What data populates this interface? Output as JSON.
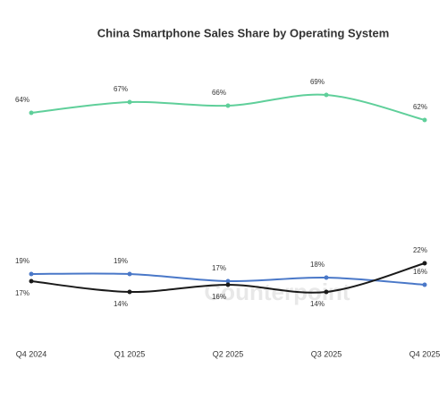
{
  "chart_data": {
    "type": "line",
    "title": "China Smartphone Sales Share by Operating System",
    "watermark": "Counterpoint",
    "categories": [
      "Q4 2024",
      "Q1 2025",
      "Q2 2025",
      "Q3 2025",
      "Q4 2025"
    ],
    "ylim": [
      0,
      75
    ],
    "series": [
      {
        "color": "#5fcf9a",
        "values": [
          64,
          67,
          66,
          69,
          62
        ],
        "value_labels": [
          "64%",
          "67%",
          "66%",
          "69%",
          "62%"
        ]
      },
      {
        "color": "#4a78c8",
        "values": [
          19,
          19,
          17,
          18,
          16
        ],
        "value_labels": [
          "19%",
          "19%",
          "17%",
          "18%",
          "16%"
        ]
      },
      {
        "color": "#1a1a1a",
        "values": [
          17,
          14,
          16,
          14,
          22
        ],
        "value_labels": [
          "17%",
          "14%",
          "16%",
          "14%",
          "22%"
        ]
      }
    ]
  }
}
